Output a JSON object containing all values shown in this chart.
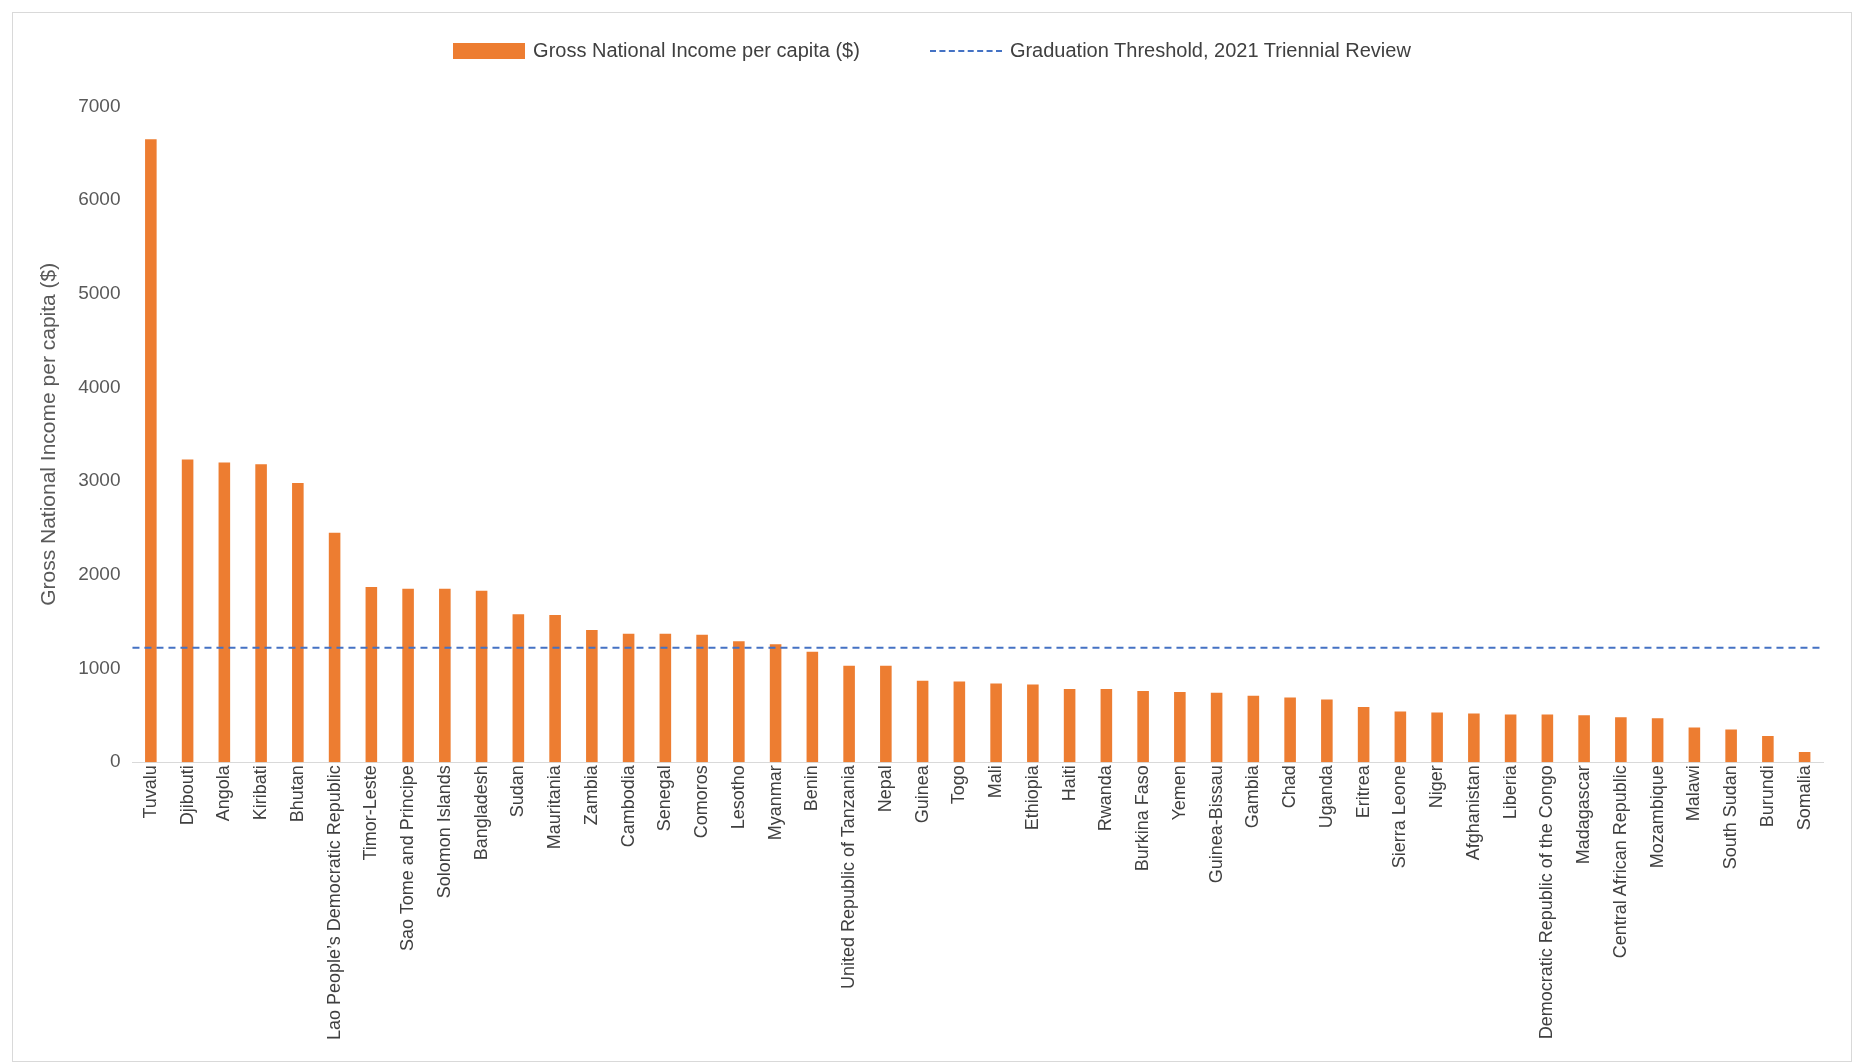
{
  "chart_data": {
    "type": "bar",
    "ylabel": "Gross National Income per capita ($)",
    "categories": [
      "Tuvalu",
      "Djibouti",
      "Angola",
      "Kiribati",
      "Bhutan",
      "Lao People’s Democratic Republic",
      "Timor-Leste",
      "Sao Tome and Principe",
      "Solomon Islands",
      "Bangladesh",
      "Sudan",
      "Mauritania",
      "Zambia",
      "Cambodia",
      "Senegal",
      "Comoros",
      "Lesotho",
      "Myanmar",
      "Benin",
      "United Republic of Tanzania",
      "Nepal",
      "Guinea",
      "Togo",
      "Mali",
      "Ethiopia",
      "Haiti",
      "Rwanda",
      "Burkina Faso",
      "Yemen",
      "Guinea-Bissau",
      "Gambia",
      "Chad",
      "Uganda",
      "Eritrea",
      "Sierra Leone",
      "Niger",
      "Afghanistan",
      "Liberia",
      "Democratic Republic of the Congo",
      "Madagascar",
      "Central African Republic",
      "Mozambique",
      "Malawi",
      "South Sudan",
      "Burundi",
      "Somalia"
    ],
    "series": [
      {
        "name": "Gross National Income per capita ($)",
        "color": "#ed7d31",
        "values": [
          6650,
          3230,
          3200,
          3180,
          2980,
          2450,
          1870,
          1850,
          1850,
          1830,
          1580,
          1570,
          1410,
          1370,
          1370,
          1360,
          1290,
          1260,
          1180,
          1030,
          1030,
          870,
          860,
          840,
          830,
          780,
          780,
          760,
          750,
          740,
          710,
          690,
          670,
          590,
          540,
          530,
          520,
          510,
          510,
          500,
          480,
          470,
          370,
          350,
          280,
          110
        ]
      }
    ],
    "ref_lines": [
      {
        "axis": "y",
        "value": 1222,
        "label": "Graduation Threshold, 2021 Triennial Review",
        "color": "#4472c4",
        "line_style": "dashed"
      }
    ],
    "ylim": [
      0,
      7000
    ],
    "yticks": [
      0,
      1000,
      2000,
      3000,
      4000,
      5000,
      6000,
      7000
    ],
    "grid": false,
    "legend": "top"
  }
}
